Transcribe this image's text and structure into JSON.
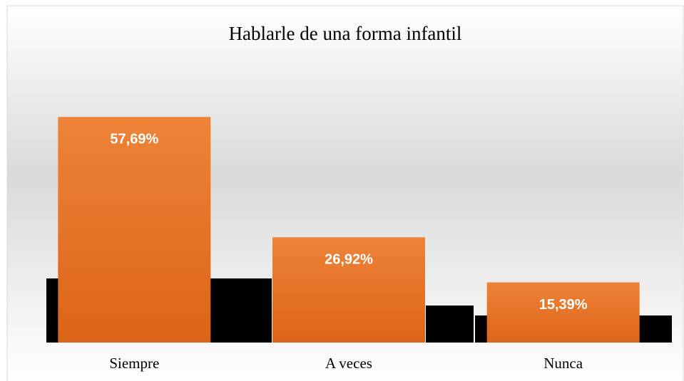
{
  "chart_data": {
    "type": "bar",
    "title": "Hablarle de una forma infantil",
    "categories": [
      "Siempre",
      "A veces",
      "Nunca"
    ],
    "values": [
      57.69,
      26.92,
      15.39
    ],
    "value_labels": [
      "57,69%",
      "26,92%",
      "15,39%"
    ],
    "color": "#ed7d31"
  }
}
